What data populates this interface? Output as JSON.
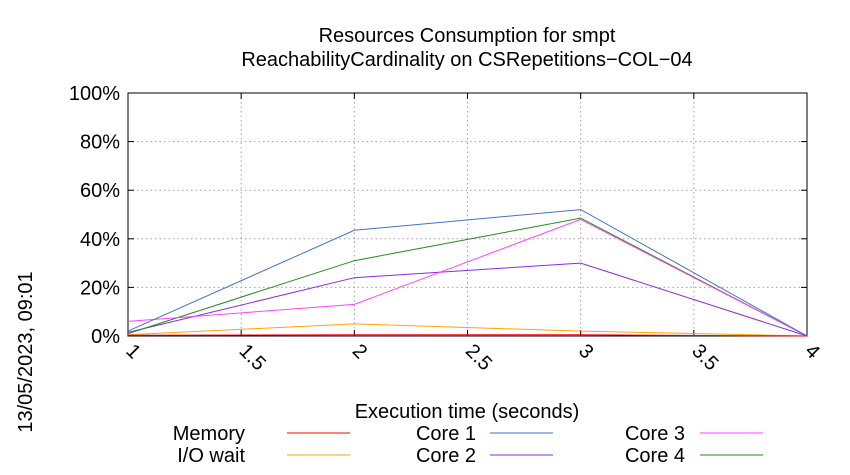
{
  "chart_data": {
    "type": "line",
    "title": "Resources Consumption for smpt",
    "subtitle": "ReachabilityCardinality on CSRepetitions−COL−04",
    "xlabel": "Execution time (seconds)",
    "ylabel": "",
    "side_label": "13/05/2023, 09:01",
    "xlim": [
      1,
      4
    ],
    "ylim": [
      0,
      100
    ],
    "x_ticks": [
      "1",
      "1.5",
      "2",
      "2.5",
      "3",
      "3.5",
      "4"
    ],
    "y_ticks": [
      "0%",
      "20%",
      "40%",
      "60%",
      "80%",
      "100%"
    ],
    "grid": true,
    "legend_position": "bottom",
    "series": [
      {
        "name": "Memory",
        "color": "#ff0000",
        "x": [
          1,
          2,
          3,
          4
        ],
        "y": [
          0.3,
          0.5,
          0.5,
          0
        ]
      },
      {
        "name": "I/O wait",
        "color": "#ffa500",
        "x": [
          1,
          2,
          3,
          4
        ],
        "y": [
          0.5,
          5,
          2,
          0
        ]
      },
      {
        "name": "Core 1",
        "color": "#4472c4",
        "x": [
          1,
          2,
          3,
          4
        ],
        "y": [
          2,
          43.5,
          52,
          0
        ]
      },
      {
        "name": "Core 2",
        "color": "#8a2be2",
        "x": [
          1,
          2,
          3,
          4
        ],
        "y": [
          1.5,
          24,
          30,
          0
        ]
      },
      {
        "name": "Core 3",
        "color": "#ff44ff",
        "x": [
          1,
          2,
          3,
          4
        ],
        "y": [
          6,
          13,
          48,
          0
        ]
      },
      {
        "name": "Core 4",
        "color": "#228b22",
        "x": [
          1,
          2,
          3,
          4
        ],
        "y": [
          1,
          31,
          48.5,
          0
        ]
      }
    ],
    "legend_columns": [
      [
        "Memory",
        "I/O wait"
      ],
      [
        "Core 1",
        "Core 2"
      ],
      [
        "Core 3",
        "Core 4"
      ]
    ]
  }
}
